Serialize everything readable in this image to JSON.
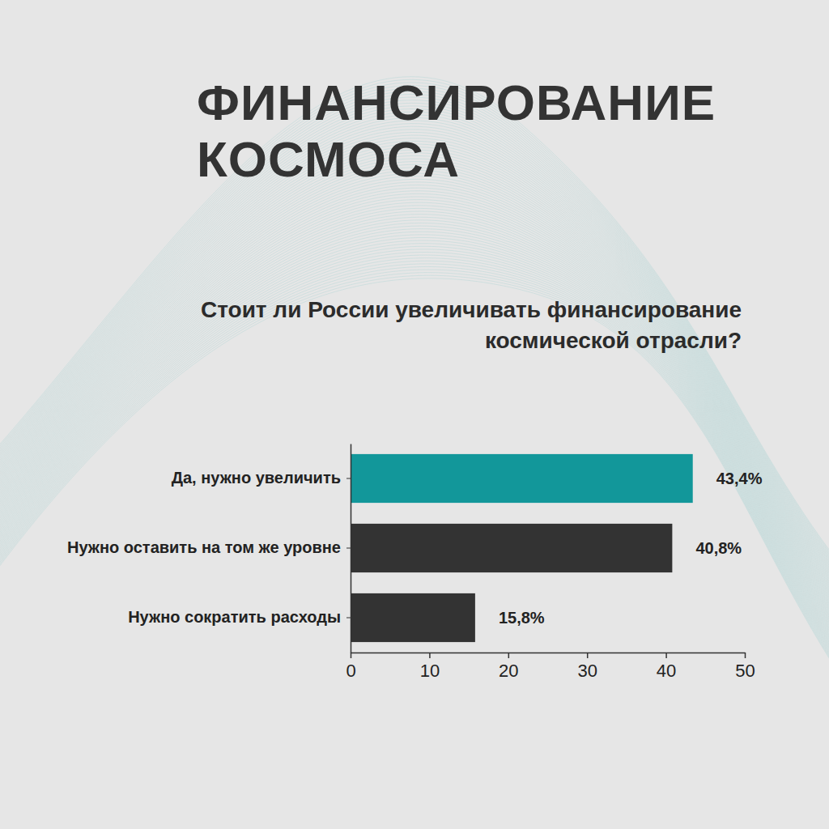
{
  "chart_data": {
    "type": "bar",
    "orientation": "horizontal",
    "title": "ФИНАНСИРОВАНИЕ КОСМОСА",
    "subtitle": "Стоит ли России увеличивать финансирование космической отрасли?",
    "categories": [
      "Да, нужно увеличить",
      "Нужно оставить на том же уровне",
      "Нужно сократить расходы"
    ],
    "values": [
      43.4,
      40.8,
      15.8
    ],
    "value_labels": [
      "43,4%",
      "40,8%",
      "15,8%"
    ],
    "colors": [
      "#12979a",
      "#333333",
      "#333333"
    ],
    "xlim": [
      0,
      50
    ],
    "xticks": [
      0,
      10,
      20,
      30,
      40,
      50
    ],
    "grid": false,
    "data_labels": true
  }
}
